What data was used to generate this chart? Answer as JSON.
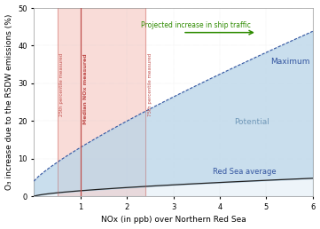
{
  "xlim": [
    0,
    6
  ],
  "ylim": [
    0,
    50
  ],
  "xticks": [
    1,
    2,
    3,
    4,
    5,
    6
  ],
  "yticks": [
    0,
    10,
    20,
    30,
    40,
    50
  ],
  "xlabel": "NOx (in ppb) over Northern Red Sea",
  "ylabel": "O₃ increase due to the RSDW emissions (%)",
  "pink_color": "#f5c0b8",
  "fill_between_color": "#b8d4e8",
  "median_nox_x": 1.0,
  "p25_x": 0.5,
  "p75_x": 2.4,
  "median_label": "Median NOx measured",
  "p25_label": "25th percentile measured",
  "p75_label": "75th percentile measured",
  "label_color": "#c0504d",
  "line_color_max": "#3355a0",
  "line_color_avg": "#222222",
  "arrow_color": "#2e8b00",
  "arrow_label": "Projected increase in ship traffic",
  "label_maximum": "Maximum",
  "label_potential": "Potential",
  "label_red_sea_avg": "Red Sea average",
  "label_fontsize": 6.5,
  "axis_fontsize": 6.5,
  "tick_fontsize": 6,
  "max_a": 11.5,
  "max_b": 0.85,
  "avg_a": 1.4,
  "avg_b": 0.5
}
